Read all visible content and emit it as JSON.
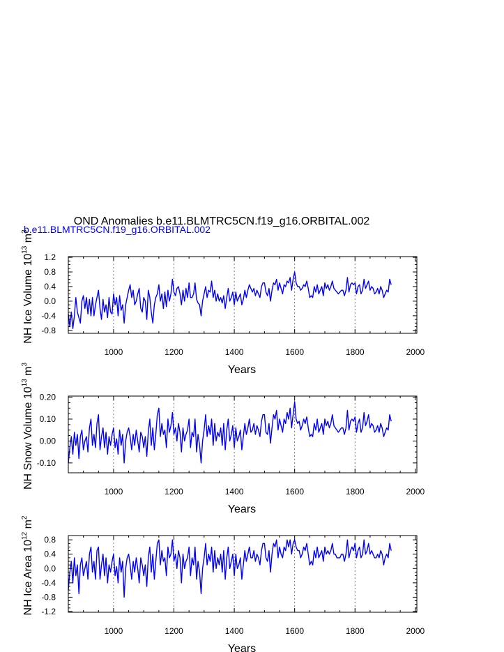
{
  "header": {
    "title": "OND Anomalies b.e11.BLMTRC5CN.f19_g16.ORBITAL.002",
    "legend_label": "b.e11.BLMTRC5CN.f19_g16.ORBITAL.002",
    "legend_color": "#0000ff"
  },
  "chart_data": [
    {
      "type": "line",
      "id": "ice-volume",
      "ylabel": {
        "main": "NH Ice Volume 10",
        "exp": "13",
        "unit": " m",
        "unit_exp": "3"
      },
      "xlabel": "Years",
      "xlim": [
        850,
        2005
      ],
      "ylim": [
        -0.88,
        1.22
      ],
      "xticks": [
        1000,
        1200,
        1400,
        1600,
        1800,
        2000
      ],
      "yticks": [
        -0.8,
        -0.4,
        0.0,
        0.4,
        0.8,
        1.2
      ],
      "ytick_labels": [
        "-0.8",
        "-0.4",
        "0.0",
        "0.4",
        "0.8",
        "1.2"
      ],
      "grid_x": [
        1000,
        1200,
        1400,
        1600,
        1800
      ],
      "series": [
        {
          "color": "#0000ff",
          "x_start": 850,
          "x_step": 5,
          "values": [
            -0.35,
            -0.7,
            -0.3,
            -0.75,
            -0.4,
            0.1,
            -0.3,
            -0.45,
            -0.6,
            0.0,
            0.15,
            -0.2,
            0.1,
            -0.35,
            0.05,
            -0.4,
            0.1,
            -0.4,
            -0.1,
            0.1,
            0.3,
            -0.2,
            -0.5,
            0.05,
            -0.3,
            -0.1,
            -0.45,
            0.1,
            -0.3,
            -0.35,
            0.2,
            -0.1,
            0.1,
            -0.4,
            0.15,
            -0.25,
            -0.1,
            -0.6,
            -0.1,
            0.1,
            0.3,
            0.45,
            0.1,
            0.3,
            -0.1,
            0.0,
            0.2,
            0.35,
            -0.2,
            -0.3,
            0.1,
            0.0,
            -0.5,
            0.3,
            0.1,
            -0.3,
            -0.6,
            -0.1,
            0.1,
            0.2,
            0.45,
            0.0,
            0.2,
            -0.2,
            0.25,
            -0.15,
            0.3,
            0.0,
            0.2,
            0.6,
            0.25,
            0.15,
            0.35,
            0.4,
            0.2,
            -0.1,
            0.3,
            0.0,
            0.35,
            0.1,
            0.5,
            0.1,
            0.1,
            0.2,
            0.5,
            0.05,
            -0.05,
            -0.1,
            -0.4,
            0.0,
            0.2,
            0.4,
            0.1,
            0.3,
            0.25,
            0.55,
            0.1,
            0.3,
            0.0,
            0.2,
            0.0,
            0.1,
            -0.05,
            0.15,
            -0.2,
            0.1,
            0.35,
            0.0,
            0.1,
            0.25,
            -0.1,
            0.25,
            0.0,
            0.1,
            0.2,
            -0.1,
            0.05,
            0.3,
            0.1,
            0.3,
            0.45,
            0.35,
            0.25,
            0.35,
            0.15,
            0.3,
            0.2,
            0.1,
            0.4,
            0.5,
            0.5,
            0.25,
            0.15,
            0.35,
            0.0,
            0.3,
            0.5,
            0.45,
            0.6,
            0.3,
            0.5,
            0.35,
            0.2,
            0.45,
            0.4,
            0.55,
            0.5,
            0.65,
            0.3,
            0.6,
            0.8,
            0.5,
            0.4,
            0.4,
            0.3,
            0.35,
            0.45,
            0.4,
            0.55,
            0.35,
            0.1,
            0.15,
            0.1,
            0.4,
            0.25,
            0.45,
            0.2,
            0.3,
            0.4,
            0.15,
            0.5,
            0.35,
            0.45,
            0.3,
            0.4,
            0.55,
            0.35,
            0.3,
            0.25,
            0.2,
            0.25,
            0.3,
            0.3,
            0.15,
            0.3,
            0.65,
            0.25,
            0.45,
            0.5,
            0.45,
            0.5,
            0.2,
            0.4,
            0.45,
            0.2,
            0.3,
            0.6,
            0.35,
            0.45,
            0.55,
            0.3,
            0.4,
            0.35,
            0.2,
            0.25,
            0.35,
            0.2,
            0.4,
            0.3,
            0.1,
            0.2,
            0.3,
            0.25,
            0.6,
            0.45
          ]
        }
      ]
    },
    {
      "type": "line",
      "id": "snow-volume",
      "ylabel": {
        "main": "NH Snow Volume 10",
        "exp": "13",
        "unit": " m",
        "unit_exp": "3"
      },
      "xlabel": "Years",
      "xlim": [
        850,
        2005
      ],
      "ylim": [
        -0.145,
        0.205
      ],
      "xticks": [
        1000,
        1200,
        1400,
        1600,
        1800,
        2000
      ],
      "yticks": [
        -0.1,
        0.0,
        0.1,
        0.2
      ],
      "ytick_labels": [
        "-0.10",
        "0.00",
        "0.10",
        "0.20"
      ],
      "grid_x": [
        1000,
        1200,
        1400,
        1600,
        1800
      ],
      "series": [
        {
          "color": "#0000ff",
          "x_start": 850,
          "x_step": 5,
          "values": [
            -0.1,
            -0.03,
            0.02,
            -0.06,
            0.04,
            -0.02,
            0.03,
            -0.08,
            0.02,
            0.05,
            -0.04,
            0.0,
            0.02,
            -0.05,
            0.06,
            0.1,
            -0.02,
            0.03,
            -0.03,
            0.08,
            0.12,
            -0.04,
            0.02,
            0.06,
            -0.03,
            0.04,
            -0.06,
            0.02,
            -0.02,
            0.03,
            0.06,
            -0.03,
            0.01,
            -0.06,
            0.05,
            -0.02,
            0.03,
            -0.1,
            0.0,
            0.04,
            0.06,
            0.02,
            -0.04,
            0.03,
            -0.02,
            0.05,
            0.0,
            -0.05,
            0.04,
            0.02,
            -0.03,
            0.02,
            -0.07,
            0.04,
            0.1,
            -0.02,
            0.06,
            -0.04,
            0.03,
            0.12,
            0.15,
            0.02,
            0.08,
            0.03,
            0.05,
            -0.03,
            0.1,
            0.04,
            0.07,
            0.13,
            0.03,
            0.06,
            0.0,
            0.08,
            0.04,
            -0.05,
            0.06,
            0.0,
            0.03,
            0.05,
            0.1,
            -0.03,
            0.04,
            0.02,
            0.1,
            -0.05,
            0.03,
            -0.02,
            -0.1,
            0.0,
            0.05,
            0.12,
            0.02,
            0.07,
            0.03,
            0.1,
            -0.02,
            0.08,
            0.0,
            0.04,
            0.02,
            0.06,
            -0.02,
            0.08,
            -0.04,
            0.05,
            0.1,
            0.0,
            0.03,
            0.07,
            -0.03,
            0.06,
            0.0,
            0.02,
            0.05,
            -0.04,
            0.02,
            0.08,
            0.03,
            0.06,
            0.1,
            0.04,
            0.05,
            0.08,
            0.03,
            0.07,
            0.05,
            0.02,
            0.09,
            0.12,
            0.12,
            0.04,
            0.03,
            0.08,
            -0.01,
            0.06,
            0.12,
            0.1,
            0.14,
            0.05,
            0.1,
            0.07,
            0.04,
            0.1,
            0.08,
            0.13,
            0.1,
            0.15,
            0.06,
            0.12,
            0.18,
            0.1,
            0.08,
            0.09,
            0.05,
            0.07,
            0.1,
            0.08,
            0.11,
            0.06,
            0.02,
            0.03,
            0.02,
            0.08,
            0.05,
            0.1,
            0.04,
            0.06,
            0.08,
            0.03,
            0.1,
            0.07,
            0.09,
            0.06,
            0.08,
            0.12,
            0.07,
            0.06,
            0.05,
            0.04,
            0.05,
            0.06,
            0.06,
            0.03,
            0.06,
            0.14,
            0.05,
            0.09,
            0.1,
            0.09,
            0.11,
            0.04,
            0.08,
            0.1,
            0.04,
            0.06,
            0.13,
            0.07,
            0.09,
            0.12,
            0.06,
            0.08,
            0.07,
            0.04,
            0.05,
            0.07,
            0.04,
            0.08,
            0.06,
            0.02,
            0.04,
            0.06,
            0.05,
            0.12,
            0.09
          ]
        }
      ]
    },
    {
      "type": "line",
      "id": "ice-area",
      "ylabel": {
        "main": "NH Ice Area 10",
        "exp": "12",
        "unit": " m",
        "unit_exp": "2"
      },
      "xlabel": "Years",
      "xlim": [
        850,
        2005
      ],
      "ylim": [
        -1.22,
        0.92
      ],
      "xticks": [
        1000,
        1200,
        1400,
        1600,
        1800,
        2000
      ],
      "yticks": [
        -1.2,
        -0.8,
        -0.4,
        0.0,
        0.4,
        0.8
      ],
      "ytick_labels": [
        "-1.2",
        "-0.8",
        "-0.4",
        "0.0",
        "0.4",
        "0.8"
      ],
      "grid_x": [
        1000,
        1200,
        1400,
        1600,
        1800
      ],
      "series": [
        {
          "color": "#0000ff",
          "x_start": 850,
          "x_step": 5,
          "values": [
            -0.6,
            -0.1,
            0.2,
            -0.4,
            0.3,
            -0.2,
            0.1,
            -0.7,
            0.1,
            0.3,
            -0.2,
            0.0,
            0.2,
            -0.3,
            0.4,
            0.6,
            -0.1,
            0.2,
            -0.3,
            0.5,
            0.6,
            -0.3,
            0.1,
            0.4,
            -0.2,
            0.3,
            -0.4,
            0.1,
            -0.1,
            0.2,
            0.4,
            -0.2,
            0.05,
            -0.4,
            0.3,
            -0.1,
            0.2,
            -0.8,
            0.0,
            0.3,
            0.4,
            0.1,
            -0.3,
            0.2,
            -0.1,
            0.3,
            0.0,
            -0.4,
            0.3,
            0.1,
            -0.2,
            0.1,
            -0.5,
            0.3,
            0.6,
            -0.1,
            0.4,
            -0.3,
            0.2,
            0.7,
            0.8,
            0.1,
            0.5,
            0.2,
            0.3,
            -0.2,
            0.6,
            0.3,
            0.4,
            0.8,
            0.2,
            0.4,
            0.0,
            0.5,
            0.3,
            -0.4,
            0.4,
            0.0,
            0.2,
            0.3,
            0.6,
            -0.2,
            0.3,
            0.1,
            0.6,
            -0.3,
            0.2,
            -0.1,
            -0.7,
            0.0,
            0.3,
            0.7,
            0.1,
            0.4,
            0.2,
            0.6,
            -0.1,
            0.5,
            0.0,
            0.3,
            0.1,
            0.4,
            -0.1,
            0.5,
            -0.3,
            0.3,
            0.6,
            0.0,
            0.2,
            0.4,
            -0.2,
            0.4,
            0.0,
            0.1,
            0.3,
            -0.3,
            0.1,
            0.5,
            0.2,
            0.4,
            0.6,
            0.3,
            0.3,
            0.5,
            0.2,
            0.4,
            0.3,
            0.1,
            0.5,
            0.7,
            0.7,
            0.3,
            0.2,
            0.5,
            -0.1,
            0.4,
            0.7,
            0.6,
            0.8,
            0.3,
            0.6,
            0.4,
            0.3,
            0.6,
            0.5,
            0.8,
            0.6,
            0.8,
            0.4,
            0.7,
            0.8,
            0.6,
            0.5,
            0.5,
            0.3,
            0.4,
            0.6,
            0.5,
            0.7,
            0.4,
            0.1,
            0.2,
            0.1,
            0.5,
            0.3,
            0.6,
            0.3,
            0.4,
            0.5,
            0.2,
            0.6,
            0.4,
            0.5,
            0.4,
            0.5,
            0.7,
            0.4,
            0.4,
            0.3,
            0.3,
            0.3,
            0.4,
            0.4,
            0.2,
            0.4,
            0.8,
            0.3,
            0.5,
            0.6,
            0.5,
            0.7,
            0.3,
            0.5,
            0.6,
            0.3,
            0.4,
            0.8,
            0.4,
            0.5,
            0.7,
            0.4,
            0.5,
            0.4,
            0.3,
            0.3,
            0.4,
            0.3,
            0.5,
            0.4,
            0.1,
            0.3,
            0.4,
            0.3,
            0.7,
            0.5
          ]
        }
      ]
    }
  ]
}
